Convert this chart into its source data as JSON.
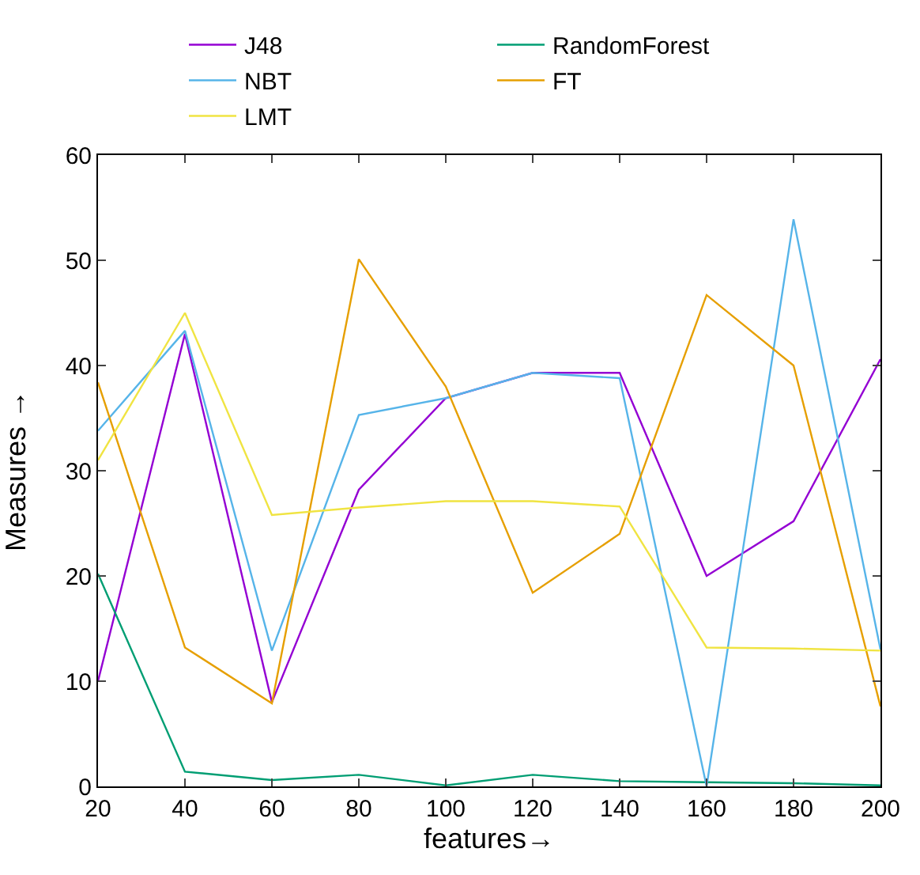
{
  "chart_data": {
    "type": "line",
    "xlabel": "features→",
    "ylabel": "Measures →",
    "x": [
      20,
      40,
      60,
      80,
      100,
      120,
      140,
      160,
      180,
      200
    ],
    "xlim": [
      20,
      200
    ],
    "xticks": [
      20,
      40,
      60,
      80,
      100,
      120,
      140,
      160,
      180,
      200
    ],
    "ylim": [
      0,
      60
    ],
    "yticks": [
      0,
      10,
      20,
      30,
      40,
      50,
      60
    ],
    "grid": false,
    "legend": "top",
    "marker": "none",
    "line_style": "solid",
    "series": [
      {
        "name": "J48",
        "color": "#9400d3",
        "values": [
          10,
          43,
          8,
          28.2,
          36.9,
          39.3,
          39.3,
          20,
          25.2,
          40.6
        ]
      },
      {
        "name": "RandomForest",
        "color": "#009e73",
        "values": [
          20.2,
          1.4,
          0.6,
          1.1,
          0.1,
          1.1,
          0.5,
          0.4,
          0.3,
          0.1
        ]
      },
      {
        "name": "NBT",
        "color": "#56b4e9",
        "values": [
          33.8,
          43.3,
          12.9,
          35.3,
          36.9,
          39.3,
          38.8,
          0,
          53.9,
          13
        ]
      },
      {
        "name": "FT",
        "color": "#e69f00",
        "values": [
          38.4,
          13.2,
          7.9,
          50.1,
          38,
          18.4,
          24,
          46.7,
          40,
          7.6
        ]
      },
      {
        "name": "LMT",
        "color": "#f0e442",
        "values": [
          31,
          45,
          25.8,
          26.5,
          27.1,
          27.1,
          26.6,
          13.2,
          13.1,
          12.9
        ]
      }
    ]
  }
}
